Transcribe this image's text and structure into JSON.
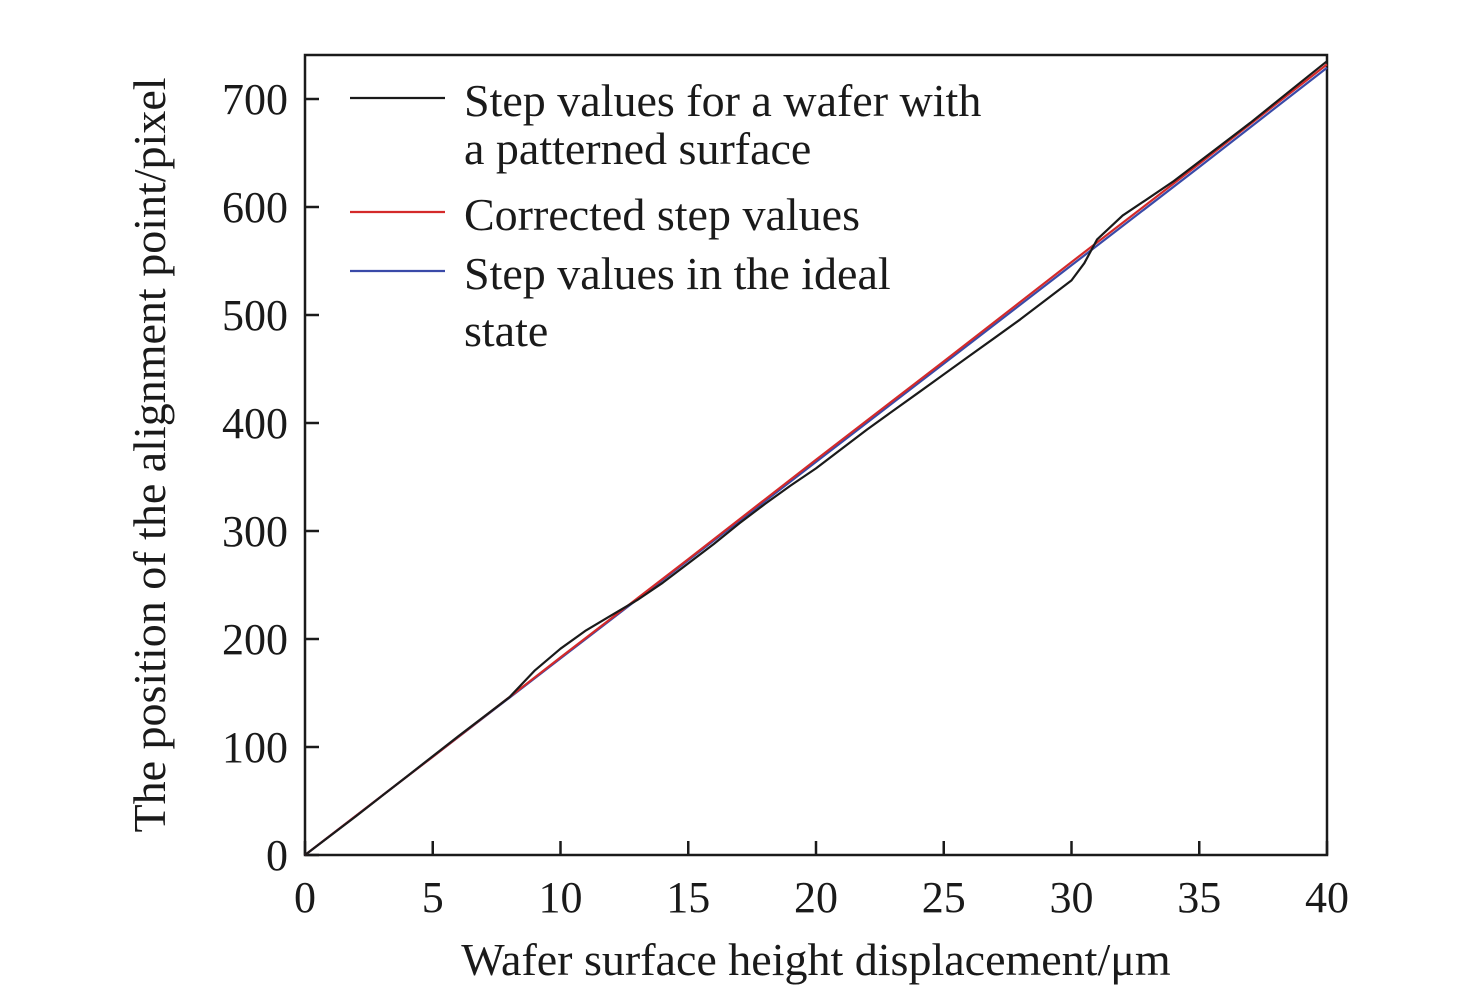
{
  "chart_data": {
    "type": "line",
    "title": "",
    "xlabel": "Wafer surface height displacement/μm",
    "ylabel": "The position of the alignment point/pixel",
    "xlim": [
      0,
      40
    ],
    "ylim": [
      0,
      740
    ],
    "xticks": [
      0,
      5,
      10,
      15,
      20,
      25,
      30,
      35,
      40
    ],
    "yticks": [
      0,
      100,
      200,
      300,
      400,
      500,
      600,
      700
    ],
    "grid": false,
    "legend_position": "top-left",
    "series": [
      {
        "name_lines": [
          "Step values for a wafer with",
          "a patterned surface"
        ],
        "color": "#1a1a1a",
        "x": [
          0,
          2,
          4,
          6,
          8,
          9,
          10,
          11,
          12,
          13,
          14,
          15,
          16,
          17,
          18,
          19,
          20,
          21,
          22,
          23,
          24,
          25,
          26,
          27,
          28,
          29,
          30,
          30.5,
          31,
          32,
          33,
          34,
          35,
          36,
          37,
          38,
          39,
          40
        ],
        "y": [
          0,
          36,
          73,
          110,
          146,
          171,
          191,
          208,
          222,
          236,
          252,
          270,
          288,
          307,
          325,
          342,
          358,
          376,
          394,
          411,
          428,
          445,
          462,
          479,
          496,
          514,
          532,
          548,
          570,
          592,
          608,
          624,
          642,
          660,
          678,
          697,
          716,
          735
        ]
      },
      {
        "name_lines": [
          "Corrected step values"
        ],
        "color": "#d42a2a",
        "x": [
          0,
          5,
          10,
          15,
          20,
          25,
          30,
          35,
          40
        ],
        "y": [
          0,
          91,
          183,
          274,
          366,
          457,
          549,
          640,
          732
        ]
      },
      {
        "name_lines": [
          "Step values in the ideal",
          "state"
        ],
        "color": "#3a4aa8",
        "x": [
          0,
          5,
          10,
          15,
          20,
          25,
          30,
          35,
          40
        ],
        "y": [
          0,
          91,
          182,
          273,
          364,
          455,
          546,
          637,
          729
        ]
      }
    ]
  }
}
